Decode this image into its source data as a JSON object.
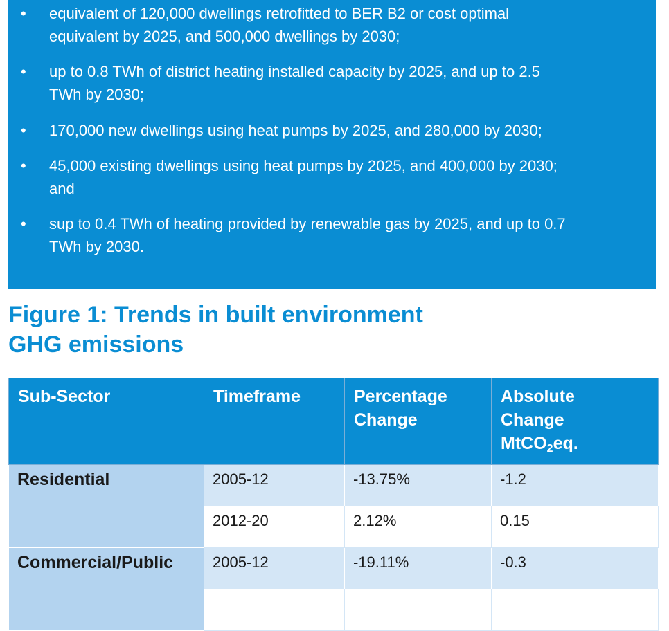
{
  "bullets": [
    {
      "lines": [
        "equivalent of 120,000 dwellings retrofitted to BER B2 or cost optimal",
        "equivalent by 2025, and 500,000 dwellings by 2030;"
      ]
    },
    {
      "lines": [
        "up to 0.8 TWh of district heating installed capacity by 2025, and up to 2.5",
        "TWh by 2030;"
      ]
    },
    {
      "lines": [
        "170,000 new dwellings using heat pumps by 2025, and 280,000 by 2030;"
      ]
    },
    {
      "lines": [
        "45,000 existing dwellings using heat pumps by 2025, and 400,000 by 2030;",
        "and"
      ]
    },
    {
      "lines": [
        "sup to 0.4 TWh of heating provided by renewable gas by 2025, and up to 0.7",
        "TWh by 2030."
      ]
    }
  ],
  "bullet_glyph": "•",
  "figure": {
    "title_line1": "Figure 1: Trends in built environment",
    "title_line2": "GHG emissions"
  },
  "table": {
    "headers": {
      "sub_sector": "Sub-Sector",
      "timeframe": "Timeframe",
      "percentage_line1": "Percentage",
      "percentage_line2": "Change",
      "absolute_line1": "Absolute",
      "absolute_line2": "Change",
      "absolute_unit_prefix": "MtCO",
      "absolute_unit_sub": "2",
      "absolute_unit_suffix": "eq."
    },
    "groups": [
      {
        "sector": "Residential",
        "rows": [
          {
            "timeframe": "2005-12",
            "percentage": "-13.75%",
            "absolute": "-1.2"
          },
          {
            "timeframe": "2012-20",
            "percentage": "2.12%",
            "absolute": "0.15"
          }
        ]
      },
      {
        "sector": "Commercial/Public",
        "rows": [
          {
            "timeframe": "2005-12",
            "percentage": "-19.11%",
            "absolute": "-0.3"
          },
          {
            "timeframe": "",
            "percentage": "",
            "absolute": ""
          }
        ]
      }
    ]
  },
  "colors": {
    "brand_blue": "#0a8dd3",
    "sector_cell": "#b3d3ef",
    "row_alt": "#d4e6f6"
  }
}
